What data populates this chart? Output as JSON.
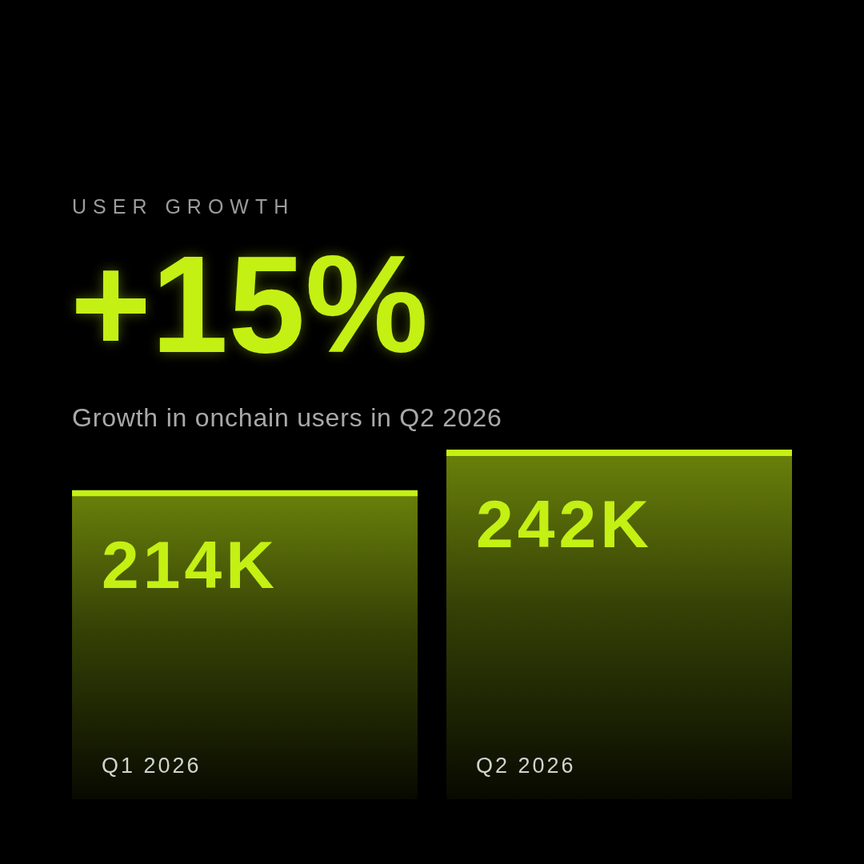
{
  "chart_data": {
    "type": "bar",
    "title": "USER GROWTH",
    "annotations": [
      "+15%"
    ],
    "subtitle": "Growth in onchain users in Q2 2026",
    "categories": [
      "Q1 2026",
      "Q2 2026"
    ],
    "values": [
      214,
      242
    ],
    "value_labels": [
      "214K",
      "242K"
    ],
    "color": "#c4f014",
    "tick_labels": "x"
  }
}
